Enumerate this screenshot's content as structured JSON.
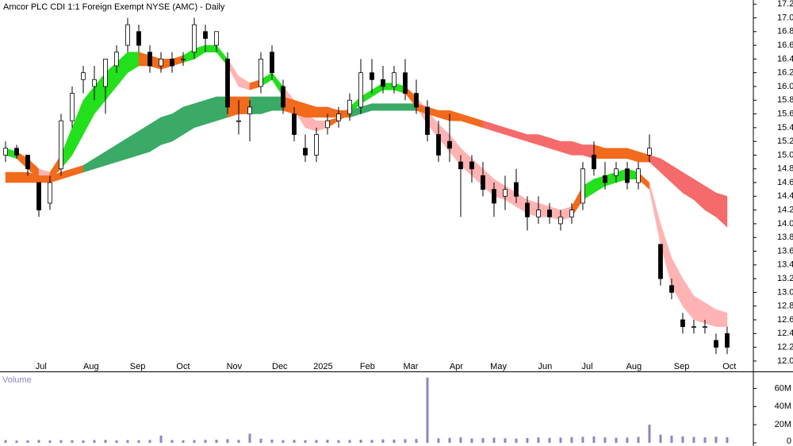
{
  "chart_data": [
    {
      "type": "candlestick",
      "title": "Amcor PLC CDI 1:1 Foreign Exempt NYSE (AMC) - Daily",
      "xlim": [
        -0.5,
        67.36
      ],
      "xticks": [
        {
          "value": 3.2,
          "label": "Jul"
        },
        {
          "value": 7.7,
          "label": "Aug"
        },
        {
          "value": 11.9,
          "label": "Sep"
        },
        {
          "value": 16,
          "label": "Oct"
        },
        {
          "value": 20.6,
          "label": "Nov"
        },
        {
          "value": 24.7,
          "label": "Dec"
        },
        {
          "value": 28.6,
          "label": "2025"
        },
        {
          "value": 32.6,
          "label": "Feb"
        },
        {
          "value": 36.5,
          "label": "Mar"
        },
        {
          "value": 40.6,
          "label": "Apr"
        },
        {
          "value": 44.4,
          "label": "May"
        },
        {
          "value": 48.6,
          "label": "Jun"
        },
        {
          "value": 52.4,
          "label": "Jul"
        },
        {
          "value": 56.6,
          "label": "Aug"
        },
        {
          "value": 60.9,
          "label": "Sep"
        },
        {
          "value": 65.2,
          "label": "Oct"
        }
      ],
      "ylim": [
        11.86,
        17.26
      ],
      "yticks": [
        {
          "value": 12,
          "label": "12.0"
        },
        12.2,
        12.4,
        12.6,
        12.8,
        {
          "value": 13,
          "label": "13.0"
        },
        13.2,
        13.4,
        13.6,
        13.8,
        {
          "value": 14,
          "label": "14.0"
        },
        14.2,
        14.4,
        14.6,
        14.8,
        {
          "value": 15,
          "label": "15.0"
        },
        15.2,
        15.4,
        15.6,
        15.8,
        {
          "value": 16,
          "label": "16.0"
        },
        16.2,
        16.4,
        16.6,
        16.8,
        {
          "value": 17,
          "label": "17.0"
        },
        17.2
      ],
      "up_color": "#ffffff",
      "down_color": "#000000",
      "open": [
        15.0,
        15.1,
        15.0,
        14.6,
        14.3,
        14.8,
        15.5,
        16.1,
        16.0,
        16.0,
        16.3,
        16.6,
        16.8,
        16.5,
        16.3,
        16.4,
        16.4,
        16.5,
        16.8,
        16.6,
        16.4,
        15.5,
        15.6,
        16.0,
        16.5,
        16.0,
        15.6,
        15.1,
        15.0,
        15.4,
        15.5,
        15.6,
        15.7,
        16.2,
        16.1,
        16.0,
        16.2,
        15.9,
        15.7,
        15.3,
        15.2,
        14.9,
        14.9,
        14.7,
        14.5,
        14.4,
        14.6,
        14.3,
        14.1,
        14.2,
        14.0,
        14.1,
        14.3,
        15.0,
        14.7,
        14.7,
        14.8,
        14.6,
        15.0,
        13.7,
        13.1,
        12.6,
        12.5,
        12.5,
        12.3,
        12.4
      ],
      "high": [
        15.2,
        15.15,
        15.0,
        14.6,
        14.7,
        15.6,
        16.0,
        16.3,
        16.3,
        16.4,
        16.6,
        17.0,
        16.9,
        16.6,
        16.5,
        16.5,
        16.5,
        17.0,
        16.9,
        16.8,
        16.5,
        15.8,
        15.8,
        16.5,
        16.6,
        16.1,
        15.7,
        15.3,
        15.4,
        15.6,
        15.7,
        15.9,
        16.4,
        16.4,
        16.3,
        16.3,
        16.4,
        16.1,
        15.8,
        15.5,
        15.6,
        15.0,
        15.0,
        14.9,
        14.6,
        14.7,
        14.8,
        14.4,
        14.4,
        14.3,
        14.2,
        14.3,
        14.9,
        15.2,
        14.9,
        14.9,
        14.9,
        14.9,
        15.3,
        13.7,
        13.2,
        12.7,
        12.6,
        12.6,
        12.4,
        12.5
      ],
      "low": [
        14.9,
        14.95,
        14.7,
        14.1,
        14.2,
        14.7,
        15.4,
        15.9,
        15.8,
        15.6,
        16.2,
        16.5,
        16.5,
        16.2,
        16.2,
        16.2,
        16.3,
        16.4,
        16.5,
        16.5,
        15.6,
        15.3,
        15.2,
        15.9,
        16.1,
        15.6,
        15.2,
        14.9,
        14.9,
        15.3,
        15.4,
        15.5,
        15.6,
        15.9,
        15.9,
        15.9,
        15.8,
        15.6,
        15.2,
        14.9,
        14.9,
        14.1,
        14.6,
        14.4,
        14.1,
        14.2,
        14.3,
        13.9,
        14.0,
        14.0,
        13.9,
        14.0,
        14.2,
        14.7,
        14.5,
        14.6,
        14.5,
        14.5,
        14.9,
        13.1,
        12.9,
        12.4,
        12.4,
        12.4,
        12.1,
        12.1
      ],
      "close": [
        15.1,
        15.0,
        14.8,
        14.2,
        14.6,
        15.5,
        15.9,
        16.2,
        16.1,
        16.4,
        16.5,
        16.9,
        16.6,
        16.3,
        16.4,
        16.3,
        16.4,
        16.9,
        16.7,
        16.8,
        15.7,
        15.5,
        15.7,
        16.4,
        16.2,
        15.7,
        15.3,
        15.0,
        15.3,
        15.5,
        15.6,
        15.8,
        16.2,
        16.1,
        16.0,
        16.2,
        15.9,
        15.7,
        15.3,
        15.0,
        15.1,
        14.8,
        14.8,
        14.5,
        14.3,
        14.5,
        14.4,
        14.1,
        14.2,
        14.1,
        14.1,
        14.2,
        14.8,
        14.8,
        14.6,
        14.8,
        14.6,
        14.8,
        15.1,
        13.2,
        13.0,
        12.5,
        12.5,
        12.5,
        12.2,
        12.2
      ],
      "bands": [
        {
          "upper": [
            15.1,
            15.05,
            14.95,
            14.8,
            14.75,
            15.0,
            15.4,
            15.8,
            16.0,
            16.2,
            16.35,
            16.5,
            16.5,
            16.45,
            16.4,
            16.4,
            16.45,
            16.55,
            16.6,
            16.6,
            16.4,
            16.15,
            16.05,
            16.1,
            16.2,
            16.0,
            15.8,
            15.6,
            15.5,
            15.5,
            15.55,
            15.7,
            15.85,
            15.95,
            16.05,
            16.05,
            16.0,
            15.85,
            15.65,
            15.45,
            15.3,
            15.1,
            14.95,
            14.8,
            14.65,
            14.55,
            14.45,
            14.35,
            14.3,
            14.25,
            14.2,
            14.25,
            14.55,
            14.65,
            14.7,
            14.75,
            14.8,
            14.75,
            14.6,
            14.0,
            13.5,
            13.2,
            12.95,
            12.85,
            12.75,
            12.7
          ],
          "lower": [
            15.0,
            14.95,
            14.8,
            14.65,
            14.65,
            14.8,
            15.0,
            15.3,
            15.6,
            15.8,
            16.0,
            16.2,
            16.3,
            16.3,
            16.25,
            16.3,
            16.35,
            16.4,
            16.5,
            16.5,
            16.3,
            16.0,
            15.95,
            16.0,
            16.1,
            15.85,
            15.65,
            15.4,
            15.35,
            15.4,
            15.5,
            15.6,
            15.75,
            15.85,
            15.95,
            15.95,
            15.9,
            15.7,
            15.45,
            15.25,
            15.05,
            14.85,
            14.7,
            14.55,
            14.4,
            14.35,
            14.25,
            14.15,
            14.1,
            14.1,
            14.05,
            14.1,
            14.35,
            14.45,
            14.55,
            14.6,
            14.65,
            14.65,
            14.5,
            13.7,
            13.1,
            12.8,
            12.6,
            12.55,
            12.5,
            12.5
          ],
          "colors": [
            "#22e01c",
            "#f26a1b",
            "#f26a1b",
            "#ffb3b3",
            "#f26a1b",
            "#22e01c",
            "#22e01c",
            "#22e01c",
            "#22e01c",
            "#22e01c",
            "#22e01c",
            "#22e01c",
            "#f26a1b",
            "#f26a1b",
            "#f26a1b",
            "#f26a1b",
            "#22e01c",
            "#22e01c",
            "#22e01c",
            "#22e01c",
            "#ffb3b3",
            "#ffb3b3",
            "#f26a1b",
            "#22e01c",
            "#22e01c",
            "#ffb3b3",
            "#ffb3b3",
            "#ffb3b3",
            "#ffb3b3",
            "#f26a1b",
            "#f26a1b",
            "#22e01c",
            "#22e01c",
            "#22e01c",
            "#22e01c",
            "#22e01c",
            "#f26a1b",
            "#ffb3b3",
            "#ffb3b3",
            "#ffb3b3",
            "#ffb3b3",
            "#ffb3b3",
            "#ffb3b3",
            "#ffb3b3",
            "#ffb3b3",
            "#ffb3b3",
            "#ffb3b3",
            "#ffb3b3",
            "#ffb3b3",
            "#ffb3b3",
            "#ffb3b3",
            "#f26a1b",
            "#22e01c",
            "#22e01c",
            "#22e01c",
            "#22e01c",
            "#22e01c",
            "#f26a1b",
            "#ffb3b3",
            "#ffb3b3",
            "#ffb3b3",
            "#ffb3b3",
            "#ffb3b3",
            "#ffb3b3",
            "#ffb3b3",
            "#ffb3b3"
          ]
        },
        {
          "upper": [
            14.75,
            14.75,
            14.75,
            14.7,
            14.7,
            14.75,
            14.8,
            14.85,
            14.95,
            15.05,
            15.15,
            15.25,
            15.35,
            15.45,
            15.55,
            15.6,
            15.7,
            15.75,
            15.8,
            15.85,
            15.85,
            15.85,
            15.85,
            15.85,
            15.85,
            15.85,
            15.8,
            15.75,
            15.7,
            15.7,
            15.65,
            15.65,
            15.7,
            15.75,
            15.75,
            15.75,
            15.75,
            15.75,
            15.7,
            15.65,
            15.65,
            15.6,
            15.55,
            15.5,
            15.45,
            15.4,
            15.35,
            15.3,
            15.3,
            15.25,
            15.2,
            15.2,
            15.15,
            15.15,
            15.1,
            15.1,
            15.1,
            15.05,
            15.0,
            14.95,
            14.85,
            14.75,
            14.65,
            14.55,
            14.45,
            14.4
          ],
          "lower": [
            14.6,
            14.6,
            14.6,
            14.6,
            14.6,
            14.65,
            14.7,
            14.75,
            14.8,
            14.85,
            14.9,
            14.95,
            15.0,
            15.05,
            15.15,
            15.2,
            15.3,
            15.4,
            15.45,
            15.5,
            15.55,
            15.6,
            15.6,
            15.6,
            15.65,
            15.65,
            15.6,
            15.55,
            15.55,
            15.55,
            15.55,
            15.55,
            15.6,
            15.65,
            15.65,
            15.65,
            15.65,
            15.65,
            15.6,
            15.55,
            15.5,
            15.5,
            15.45,
            15.4,
            15.35,
            15.3,
            15.25,
            15.2,
            15.15,
            15.1,
            15.05,
            15.0,
            15.0,
            14.95,
            14.95,
            14.95,
            14.95,
            14.9,
            14.9,
            14.75,
            14.6,
            14.45,
            14.35,
            14.2,
            14.1,
            13.95
          ],
          "colors": [
            "#f26a1b",
            "#f26a1b",
            "#f26a1b",
            "#f26a1b",
            "#f26a1b",
            "#f26a1b",
            "#f26a1b",
            "#3aaa66",
            "#3aaa66",
            "#3aaa66",
            "#3aaa66",
            "#3aaa66",
            "#3aaa66",
            "#3aaa66",
            "#3aaa66",
            "#3aaa66",
            "#3aaa66",
            "#3aaa66",
            "#3aaa66",
            "#3aaa66",
            "#f26a1b",
            "#f26a1b",
            "#3aaa66",
            "#3aaa66",
            "#3aaa66",
            "#f26a1b",
            "#f26a1b",
            "#f26a1b",
            "#f26a1b",
            "#f26a1b",
            "#f26a1b",
            "#3aaa66",
            "#3aaa66",
            "#3aaa66",
            "#3aaa66",
            "#3aaa66",
            "#3aaa66",
            "#f26a1b",
            "#f26a1b",
            "#f26a1b",
            "#f26a1b",
            "#f26a1b",
            "#f26a1b",
            "#f56a6a",
            "#f56a6a",
            "#f56a6a",
            "#f56a6a",
            "#f56a6a",
            "#f56a6a",
            "#f56a6a",
            "#f56a6a",
            "#f56a6a",
            "#f56a6a",
            "#f26a1b",
            "#f26a1b",
            "#f26a1b",
            "#f26a1b",
            "#f26a1b",
            "#f56a6a",
            "#f56a6a",
            "#f56a6a",
            "#f56a6a",
            "#f56a6a",
            "#f56a6a",
            "#f56a6a",
            "#f56a6a"
          ]
        }
      ]
    },
    {
      "type": "bar",
      "title": "Volume",
      "color": "#8c86c4",
      "ylim": [
        0,
        77000000
      ],
      "yticks": [
        0,
        {
          "value": 20000000,
          "label": "20M"
        },
        {
          "value": 40000000,
          "label": "40M"
        },
        {
          "value": 60000000,
          "label": "60M"
        }
      ],
      "values": [
        3000000,
        2500000,
        2800000,
        3200000,
        2600000,
        3000000,
        2900000,
        2700000,
        3100000,
        3300000,
        2800000,
        3000000,
        2900000,
        3200000,
        8000000,
        3100000,
        2800000,
        3000000,
        3300000,
        3500000,
        4000000,
        3200000,
        10000000,
        4500000,
        3600000,
        3000000,
        3300000,
        2900000,
        3100000,
        3400000,
        3000000,
        3200000,
        3500000,
        3300000,
        3800000,
        3600000,
        4000000,
        4200000,
        72000000,
        5000000,
        5500000,
        6000000,
        4800000,
        5200000,
        5600000,
        5000000,
        4700000,
        5300000,
        6000000,
        5500000,
        5800000,
        6200000,
        6500000,
        7000000,
        6000000,
        5600000,
        5800000,
        6500000,
        20000000,
        9000000,
        8000000,
        7000000,
        6500000,
        6000000,
        6800000,
        6200000
      ]
    }
  ]
}
